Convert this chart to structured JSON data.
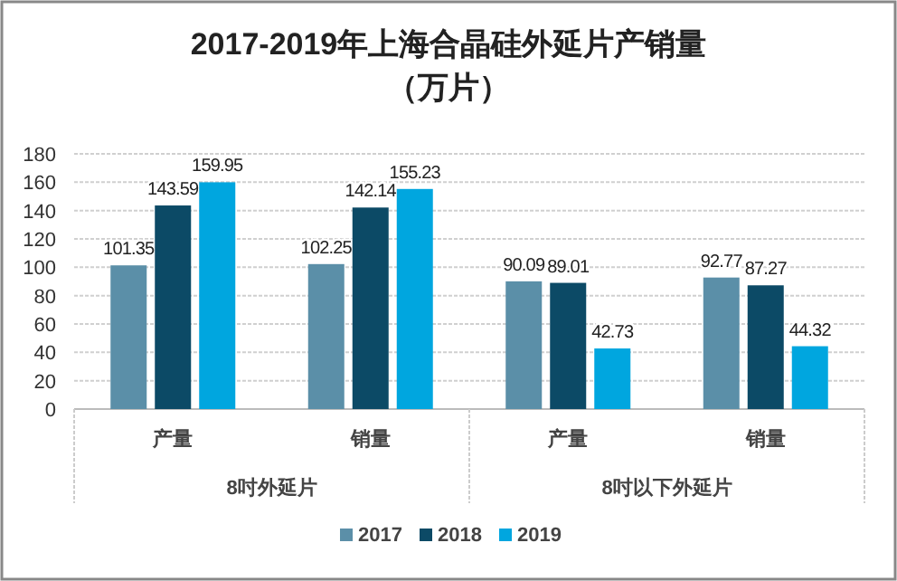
{
  "chart_data": {
    "type": "bar",
    "title": "2017-2019年上海合晶硅外延片产销量",
    "subtitle": "（万片）",
    "categories": [
      "产量",
      "销量",
      "产量",
      "销量"
    ],
    "series": [
      {
        "name": "2017",
        "color": "#5b8fa8",
        "values": [
          101.35,
          102.25,
          90.09,
          92.77
        ]
      },
      {
        "name": "2018",
        "color": "#0c4a66",
        "values": [
          143.59,
          142.14,
          89.01,
          87.27
        ]
      },
      {
        "name": "2019",
        "color": "#00a6df",
        "values": [
          159.95,
          155.23,
          42.73,
          44.32
        ]
      }
    ],
    "ylim": [
      0,
      180
    ],
    "yticks": [
      0,
      20,
      40,
      60,
      80,
      100,
      120,
      140,
      160,
      180
    ],
    "grid": "y",
    "data_labels": true,
    "legend": "bottom",
    "annotations": [
      "8吋外延片",
      "8吋以下外延片"
    ]
  }
}
